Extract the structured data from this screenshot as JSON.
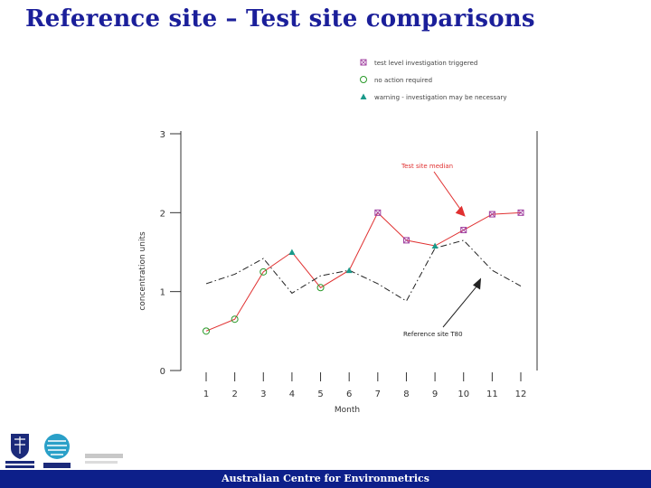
{
  "slide": {
    "title": "Reference site – Test site comparisons",
    "footer": "Australian Centre for Environmetrics",
    "logos": {
      "unimelb": "THE UNIVERSITY OF MELBOURNE",
      "csiro": "CSIRO",
      "melbourne": "MELBOURNE"
    }
  },
  "chart_data": {
    "type": "line",
    "xlabel": "Month",
    "ylabel": "concentration units",
    "x": [
      1,
      2,
      3,
      4,
      5,
      6,
      7,
      8,
      9,
      10,
      11,
      12
    ],
    "xticks": [
      "1",
      "2",
      "3",
      "4",
      "5",
      "6",
      "7",
      "8",
      "9",
      "10",
      "11",
      "12"
    ],
    "yticks": [
      "0",
      "1",
      "2",
      "3"
    ],
    "ylim": [
      0,
      3
    ],
    "xlim": [
      0.5,
      12.5
    ],
    "grid": false,
    "series": [
      {
        "name": "Test site median",
        "style": "solid",
        "color": "#e03030",
        "values": [
          0.5,
          0.65,
          1.25,
          1.5,
          1.05,
          1.27,
          2.0,
          1.65,
          1.58,
          1.78,
          1.98,
          2.0
        ],
        "markers": [
          "circle",
          "circle",
          "circle",
          "tri",
          "circle",
          "tri",
          "box",
          "box",
          "tri",
          "box",
          "box",
          "box"
        ]
      },
      {
        "name": "Reference site T80",
        "style": "dashdot",
        "color": "#222222",
        "x": [
          1,
          2,
          3,
          4,
          5,
          6,
          7,
          8,
          9,
          10,
          11,
          12
        ],
        "values": [
          1.1,
          1.22,
          1.42,
          0.98,
          1.2,
          1.27,
          1.1,
          0.88,
          1.55,
          1.65,
          1.27,
          1.07
        ]
      }
    ],
    "legend": [
      {
        "marker": "box",
        "color": "#a040a0",
        "label": "test level investigation triggered"
      },
      {
        "marker": "circle",
        "color": "#2a9a2a",
        "label": "no action required"
      },
      {
        "marker": "tri",
        "color": "#1a9a8a",
        "label": "warning - investigation may be necessary"
      }
    ],
    "legend_position": "top",
    "annotations": [
      {
        "text": "Test site median",
        "color": "#e03030",
        "arrow_to_x": 10,
        "arrow_to_y": 1.95
      },
      {
        "text": "Reference site T80",
        "color": "#222222",
        "arrow_to_x": 10.8,
        "arrow_to_y": 1.22
      }
    ]
  }
}
